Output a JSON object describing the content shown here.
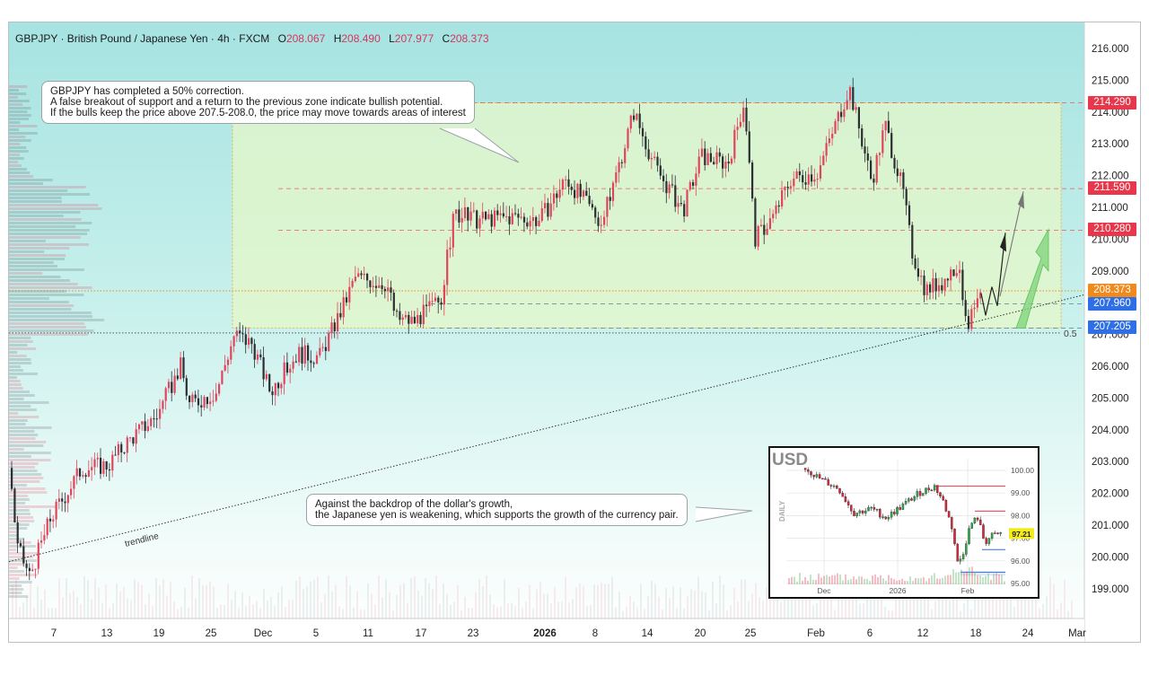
{
  "header": {
    "symbol_title": "GBPJPY · British Pound / Japanese Yen · 4h · FXCM",
    "open_label": "O",
    "open_value": "208.067",
    "high_label": "H",
    "high_value": "208.490",
    "low_label": "L",
    "low_value": "207.977",
    "close_label": "C",
    "close_value": "208.373"
  },
  "callouts": {
    "top": {
      "line1": "GBPJPY has completed a 50% correction.",
      "line2": "A false breakout of support and a return to the previous zone indicate bullish potential.",
      "line3": "If the bulls keep the price above 207.5-208.0, the price may move towards areas of interest"
    },
    "bottom": {
      "line1": "Against the backdrop of the dollar's growth,",
      "line2": "the Japanese yen is weakening, which supports the growth of the currency pair."
    }
  },
  "labels": {
    "trendline": "trendline",
    "fib_level": "0.5"
  },
  "price_badges": [
    {
      "value": "214.290",
      "color": "#e8374a"
    },
    {
      "value": "211.590",
      "color": "#e8374a"
    },
    {
      "value": "210.280",
      "color": "#e8374a"
    },
    {
      "value": "208.373",
      "color": "#f08a1c"
    },
    {
      "value": "207.960",
      "color": "#2e6ee6"
    },
    {
      "value": "207.205",
      "color": "#2e6ee6"
    }
  ],
  "colors": {
    "bull_candle": "#e0455e",
    "bear_candle": "#2b2f33",
    "resistance_line": "#e8374a",
    "support_line": "#2e6ee6",
    "current_price": "#f08a1c",
    "zone_fill": "#e6f7c8",
    "zone_border": "#e5b84a",
    "arrow_green": "#7ed37a"
  },
  "chart_data": [
    {
      "type": "candlestick",
      "title": "GBPJPY · British Pound / Japanese Yen · 4h · FXCM",
      "ylim": [
        198.7,
        216.7
      ],
      "y_ticks": [
        "216.000",
        "215.000",
        "214.000",
        "213.000",
        "212.000",
        "211.000",
        "210.000",
        "209.000",
        "208.000",
        "207.000",
        "206.000",
        "205.000",
        "204.000",
        "203.000",
        "202.000",
        "201.000",
        "200.000",
        "199.000"
      ],
      "x_ticks": [
        "7",
        "13",
        "19",
        "25",
        "Dec",
        "5",
        "11",
        "17",
        "23",
        "2026",
        "8",
        "14",
        "20",
        "25",
        "Feb",
        "6",
        "12",
        "18",
        "24",
        "Mar"
      ],
      "levels": {
        "resistance": [
          214.29,
          211.59,
          210.28
        ],
        "current": 208.373,
        "support": [
          207.96,
          207.205
        ]
      },
      "zone": {
        "top": 214.29,
        "bottom": 207.205
      },
      "fib_50": 207.05,
      "trend": [
        {
          "x": "start",
          "price": 200.4
        },
        {
          "x": "Nov 8",
          "price": 200.8
        },
        {
          "x": "Nov 13",
          "price": 202.8
        },
        {
          "x": "Nov 19",
          "price": 204.6
        },
        {
          "x": "Nov 25",
          "price": 205.3
        },
        {
          "x": "Nov 27",
          "price": 207.0
        },
        {
          "x": "Dec 1",
          "price": 205.3
        },
        {
          "x": "Dec 5",
          "price": 206.8
        },
        {
          "x": "Dec 9",
          "price": 208.7
        },
        {
          "x": "Dec 13",
          "price": 208.6
        },
        {
          "x": "Dec 15",
          "price": 207.1
        },
        {
          "x": "Dec 19",
          "price": 208.2
        },
        {
          "x": "Dec 21",
          "price": 211.4
        },
        {
          "x": "Dec 25",
          "price": 210.7
        },
        {
          "x": "Jan 2",
          "price": 210.6
        },
        {
          "x": "Jan 6",
          "price": 211.9
        },
        {
          "x": "Jan 10",
          "price": 210.5
        },
        {
          "x": "Jan 14",
          "price": 214.2
        },
        {
          "x": "Jan 18",
          "price": 210.9
        },
        {
          "x": "Jan 20",
          "price": 212.6
        },
        {
          "x": "Jan 24",
          "price": 214.5
        },
        {
          "x": "Jan 27",
          "price": 210.0
        },
        {
          "x": "Feb 1",
          "price": 211.8
        },
        {
          "x": "Feb 4",
          "price": 214.8
        },
        {
          "x": "Feb 6",
          "price": 211.8
        },
        {
          "x": "Feb 8",
          "price": 213.3
        },
        {
          "x": "Feb 10",
          "price": 209.8
        },
        {
          "x": "Feb 12",
          "price": 207.9
        },
        {
          "x": "Feb 15",
          "price": 209.5
        },
        {
          "x": "Feb 17",
          "price": 207.3
        },
        {
          "x": "Feb 19",
          "price": 208.4
        }
      ]
    },
    {
      "type": "candlestick",
      "title": "USD",
      "subtitle": "DAILY",
      "ylim": [
        94.8,
        100.5
      ],
      "y_ticks": [
        "100.00",
        "99.00",
        "98.00",
        "97.00",
        "96.00",
        "95.00"
      ],
      "x_ticks": [
        "Dec",
        "2026",
        "Feb"
      ],
      "current": {
        "value": "97.21",
        "color": "#f2ec1c"
      },
      "levels": {
        "resistance": [
          99.3,
          98.2
        ],
        "support": [
          96.5,
          95.5
        ]
      },
      "trend": [
        {
          "x": "Nov 20",
          "price": 100.2
        },
        {
          "x": "Dec 1",
          "price": 99.4
        },
        {
          "x": "Dec 12",
          "price": 98.4
        },
        {
          "x": "Dec 20",
          "price": 98.0
        },
        {
          "x": "Jan 5",
          "price": 98.8
        },
        {
          "x": "Jan 14",
          "price": 99.3
        },
        {
          "x": "Jan 22",
          "price": 97.5
        },
        {
          "x": "Jan 27",
          "price": 96.0
        },
        {
          "x": "Jan 30",
          "price": 97.4
        },
        {
          "x": "Feb 3",
          "price": 97.9
        },
        {
          "x": "Feb 6",
          "price": 97.0
        },
        {
          "x": "Feb 10",
          "price": 96.9
        },
        {
          "x": "Feb 16",
          "price": 97.21
        }
      ]
    }
  ]
}
